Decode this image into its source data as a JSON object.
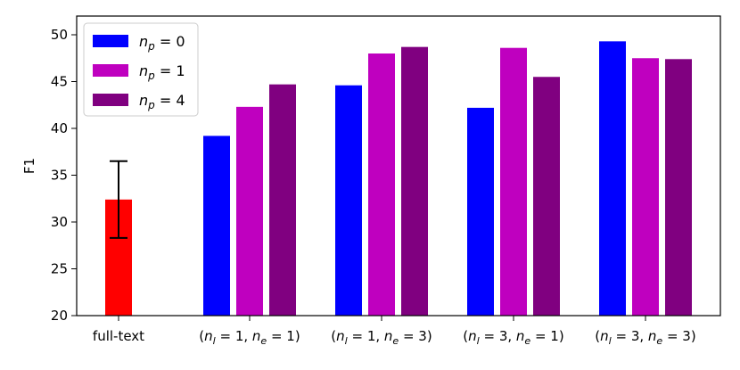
{
  "chart_data": {
    "type": "bar",
    "ylabel": "F1",
    "xlabel": "",
    "ylim": [
      20,
      52
    ],
    "yticks": [
      20,
      25,
      30,
      35,
      40,
      45,
      50
    ],
    "categories": [
      "full-text",
      "(n_l = 1, n_e = 1)",
      "(n_l = 1, n_e = 3)",
      "(n_l = 3, n_e = 1)",
      "(n_l = 3, n_e = 3)"
    ],
    "category_labels": [
      {
        "plain": "full-text"
      },
      {
        "l": "1",
        "e": "1"
      },
      {
        "l": "1",
        "e": "3"
      },
      {
        "l": "3",
        "e": "1"
      },
      {
        "l": "3",
        "e": "3"
      }
    ],
    "baseline": {
      "category": "full-text",
      "value": 32.4,
      "error_low": 28.3,
      "error_high": 36.5,
      "color": "#ff0000"
    },
    "series": [
      {
        "name": "n_p = 0",
        "p_value": "0",
        "color": "#0000ff",
        "values": [
          null,
          39.2,
          44.6,
          42.2,
          49.3
        ]
      },
      {
        "name": "n_p = 1",
        "p_value": "1",
        "color": "#bf00bf",
        "values": [
          null,
          42.3,
          48.0,
          48.6,
          47.5
        ]
      },
      {
        "name": "n_p = 4",
        "p_value": "4",
        "color": "#800080",
        "values": [
          null,
          44.7,
          48.7,
          45.5,
          47.4
        ]
      }
    ],
    "legend_position": "top-left",
    "grid": false
  }
}
